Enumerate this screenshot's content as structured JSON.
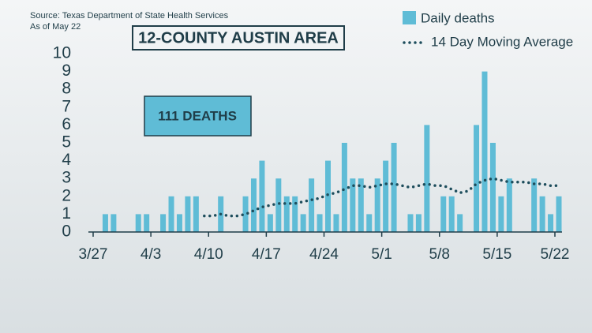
{
  "chart_data": {
    "type": "bar",
    "source": "Source: Texas Department of State Health Services",
    "as_of": "As of May 22",
    "title": "12-COUNTY AUSTIN AREA",
    "annotation": "111 DEATHS",
    "categories": [
      "3/27",
      null,
      null,
      null,
      null,
      null,
      null,
      "4/3",
      null,
      null,
      null,
      null,
      null,
      null,
      "4/10",
      null,
      null,
      null,
      null,
      null,
      null,
      "4/17",
      null,
      null,
      null,
      null,
      null,
      null,
      "4/24",
      null,
      null,
      null,
      null,
      null,
      null,
      "5/1",
      null,
      null,
      null,
      null,
      null,
      null,
      "5/8",
      null,
      null,
      null,
      null,
      null,
      null,
      "5/15",
      null,
      null,
      null,
      null,
      null,
      null,
      "5/22"
    ],
    "series": [
      {
        "name": "Daily deaths",
        "color": "#5fbcd6",
        "values": [
          0,
          1,
          1,
          0,
          0,
          1,
          1,
          0,
          1,
          2,
          1,
          2,
          2,
          0,
          0,
          2,
          0,
          0,
          2,
          3,
          4,
          1,
          3,
          2,
          2,
          1,
          3,
          1,
          4,
          1,
          5,
          3,
          3,
          1,
          3,
          4,
          5,
          0,
          1,
          1,
          6,
          0,
          2,
          2,
          1,
          0,
          6,
          9,
          5,
          2,
          3,
          0,
          0,
          3,
          2,
          1,
          2
        ]
      },
      {
        "name": "14 Day Moving Average",
        "color": "#1d4d5c",
        "values": [
          null,
          null,
          null,
          null,
          null,
          null,
          null,
          null,
          null,
          null,
          null,
          null,
          null,
          0.9,
          0.9,
          1.0,
          0.9,
          0.9,
          1.0,
          1.2,
          1.4,
          1.5,
          1.6,
          1.6,
          1.6,
          1.7,
          1.8,
          1.9,
          2.1,
          2.2,
          2.4,
          2.6,
          2.6,
          2.5,
          2.6,
          2.7,
          2.7,
          2.6,
          2.5,
          2.6,
          2.7,
          2.6,
          2.6,
          2.4,
          2.2,
          2.3,
          2.7,
          2.9,
          3.0,
          2.9,
          2.8,
          2.8,
          2.8,
          2.7,
          2.7,
          2.6,
          2.6
        ]
      }
    ],
    "ylim": [
      0,
      10
    ],
    "yticks": [
      0,
      1,
      2,
      3,
      4,
      5,
      6,
      7,
      8,
      9,
      10
    ]
  }
}
